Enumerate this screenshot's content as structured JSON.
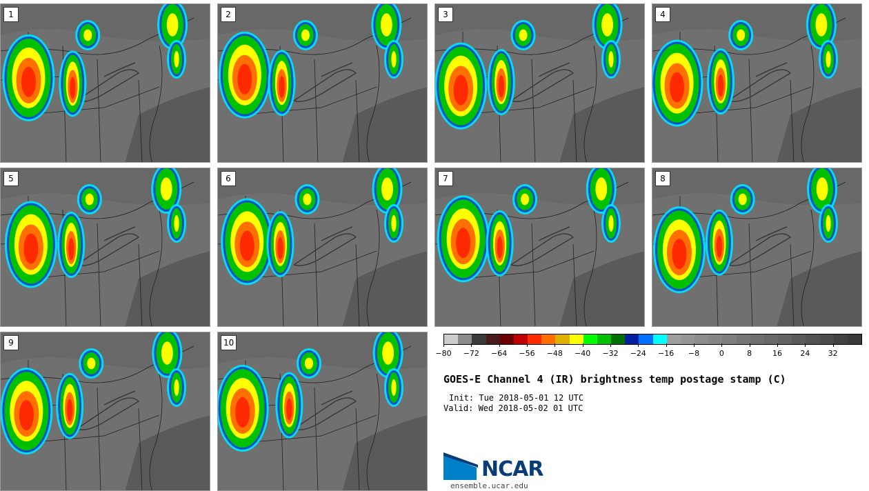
{
  "panels": [
    {
      "label": "1"
    },
    {
      "label": "2"
    },
    {
      "label": "3"
    },
    {
      "label": "4"
    },
    {
      "label": "5"
    },
    {
      "label": "6"
    },
    {
      "label": "7"
    },
    {
      "label": "8"
    },
    {
      "label": "9"
    },
    {
      "label": "10"
    }
  ],
  "colorbar": {
    "colors": [
      "#cccccc",
      "#8a8a8a",
      "#3a3a3a",
      "#4a1a1a",
      "#6a0000",
      "#c00000",
      "#ff2a00",
      "#ff7000",
      "#e0b000",
      "#ffff00",
      "#00ff00",
      "#00c000",
      "#007000",
      "#0020a0",
      "#0070ff",
      "#00ffff",
      "#9e9e9e",
      "#959595",
      "#8c8c8c",
      "#858585",
      "#7d7d7d",
      "#757575",
      "#6e6e6e",
      "#686868",
      "#626262",
      "#5a5a5a",
      "#535353",
      "#4b4b4b",
      "#424242",
      "#3a3a3a"
    ],
    "tick_labels": [
      "−80",
      "−72",
      "−64",
      "−56",
      "−48",
      "−40",
      "−32",
      "−24",
      "−16",
      "−8",
      "0",
      "8",
      "16",
      "24",
      "32"
    ],
    "min": -80,
    "max": 40
  },
  "title": "GOES-E Channel 4 (IR) brightness temp postage stamp (C)",
  "init": "Init: Tue 2018-05-01 12 UTC",
  "valid": "Valid: Wed 2018-05-02 01 UTC",
  "logo": {
    "text": "NCAR",
    "site": "ensemble.ucar.edu",
    "brand_color": "#0a3c78",
    "accent_color": "#0080c8"
  }
}
